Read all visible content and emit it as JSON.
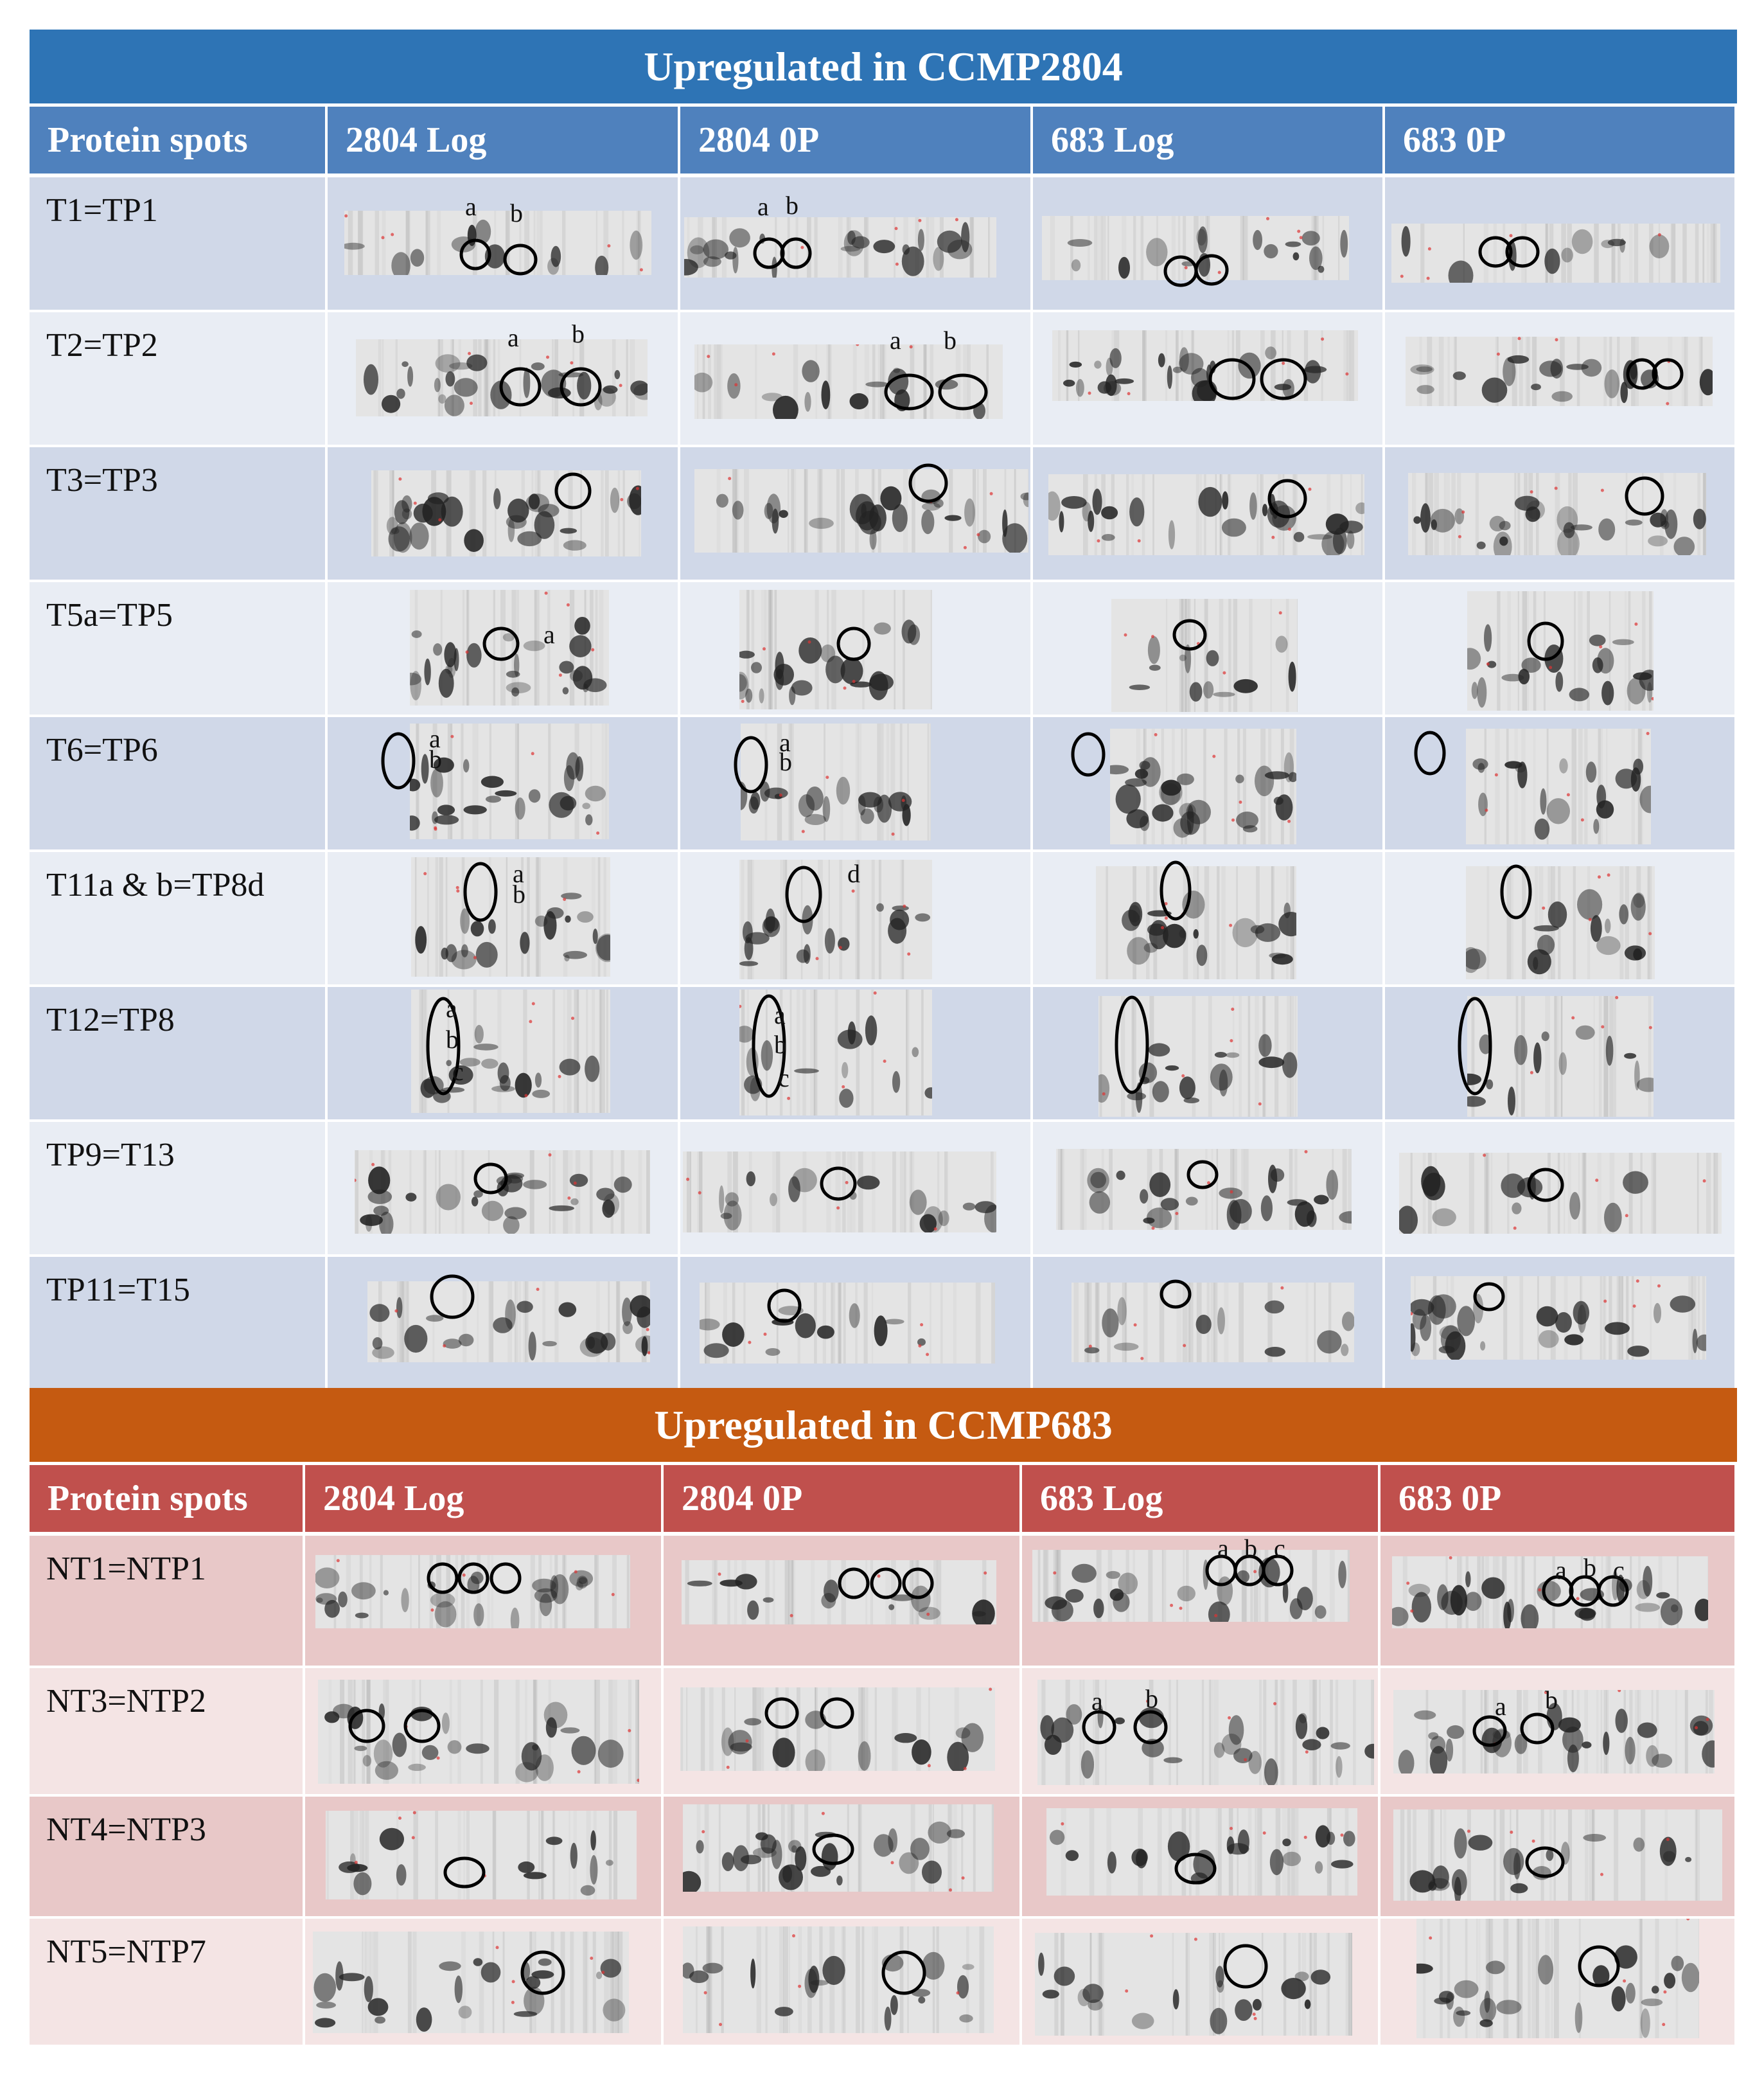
{
  "section1": {
    "title": "Upregulated in CCMP2804",
    "headers": [
      "Protein spots",
      "2804 Log",
      "2804 0P",
      "683 Log",
      "683 0P"
    ],
    "rows": [
      {
        "label": "T1=TP1",
        "letters": [
          [
            "a",
            "b"
          ],
          [
            "a",
            "b"
          ],
          [],
          []
        ]
      },
      {
        "label": "T2=TP2",
        "letters": [
          [
            "a",
            "b"
          ],
          [
            "a",
            "b"
          ],
          [],
          []
        ]
      },
      {
        "label": "T3=TP3",
        "letters": [
          [],
          [],
          [],
          []
        ]
      },
      {
        "label": "T5a=TP5",
        "letters": [
          [
            "a"
          ],
          [],
          [],
          []
        ]
      },
      {
        "label": "T6=TP6",
        "letters": [
          [
            "a",
            "b"
          ],
          [
            "a",
            "b"
          ],
          [],
          []
        ]
      },
      {
        "label": "T11a & b=TP8d",
        "letters": [
          [
            "a",
            "b"
          ],
          [
            "d"
          ],
          [],
          []
        ]
      },
      {
        "label": "T12=TP8",
        "letters": [
          [
            "a",
            "b",
            "c"
          ],
          [
            "a",
            "b",
            "c"
          ],
          [],
          []
        ]
      },
      {
        "label": "TP9=T13",
        "letters": [
          [],
          [],
          [],
          []
        ]
      },
      {
        "label": "TP11=T15",
        "letters": [
          [],
          [],
          [],
          []
        ]
      }
    ]
  },
  "section2": {
    "title": "Upregulated in CCMP683",
    "headers": [
      "Protein spots",
      "2804 Log",
      "2804 0P",
      "683 Log",
      "683 0P"
    ],
    "rows": [
      {
        "label": "NT1=NTP1",
        "letters": [
          [],
          [],
          [
            "a",
            "b",
            "c"
          ],
          [
            "a",
            "b",
            "c"
          ]
        ]
      },
      {
        "label": "NT3=NTP2",
        "letters": [
          [],
          [],
          [
            "a",
            "b"
          ],
          [
            "a",
            "b"
          ]
        ]
      },
      {
        "label": "NT4=NTP3",
        "letters": [
          [],
          [],
          [],
          []
        ]
      },
      {
        "label": "NT5=NTP7",
        "letters": [
          [],
          [],
          [],
          []
        ]
      }
    ]
  },
  "colors": {
    "blue_title": "#2e74b5",
    "blue_header": "#4f81bd",
    "orange_title": "#c55a11",
    "red_header": "#c0504d"
  }
}
